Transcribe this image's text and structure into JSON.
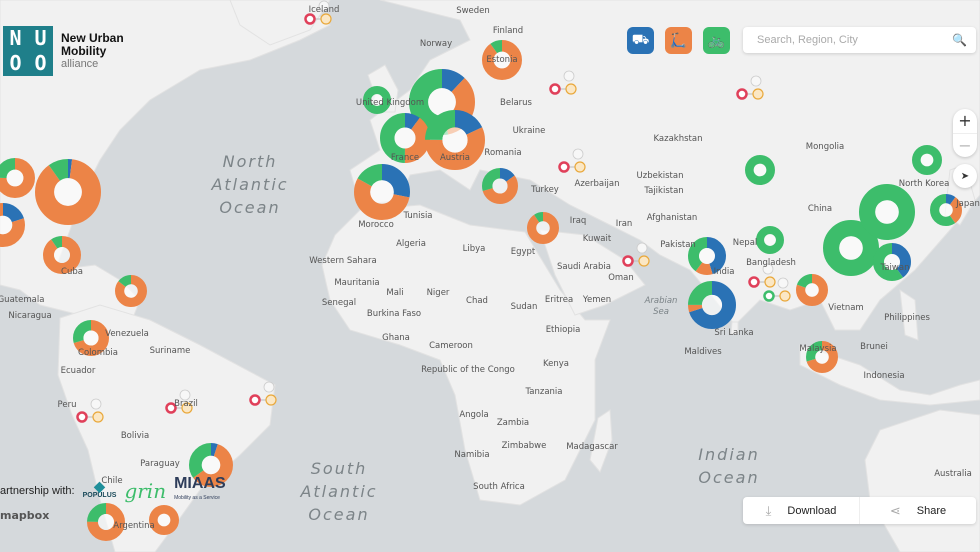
{
  "brand": {
    "logo_letters": [
      "N",
      "U",
      "M",
      "O"
    ],
    "name_line1": "New Urban",
    "name_line2": "Mobility",
    "name_line3": "alliance"
  },
  "modes": [
    {
      "name": "multimodal",
      "icon": "bus-bike-icon",
      "color": "#2a72b5"
    },
    {
      "name": "scooter",
      "icon": "scooter-icon",
      "color": "#ec8447"
    },
    {
      "name": "bike",
      "icon": "bicycle-icon",
      "color": "#3dbd6b"
    }
  ],
  "search": {
    "placeholder": "Search, Region, City",
    "value": ""
  },
  "zoom": {
    "in": "+",
    "out": "−"
  },
  "actions": {
    "download": "Download",
    "share": "Share"
  },
  "partnership": {
    "label": "artnership with:",
    "partners": [
      "POPULUS",
      "grin",
      "MIAAS"
    ],
    "miaas_tagline": "Mobility as a Service"
  },
  "attribution": "mapbox",
  "colors": {
    "green": "#3dbd6b",
    "orange": "#ec8447",
    "blue": "#2a72b5",
    "red": "#e0405a",
    "land": "#f1f1f1",
    "water": "#d5d9dc"
  },
  "oceans": [
    [
      "North",
      "Atlantic",
      "Ocean"
    ],
    [
      "South",
      "Atlantic",
      "Ocean"
    ],
    [
      "Indian",
      "Ocean"
    ]
  ],
  "seas": [
    [
      "Arabian",
      "Sea"
    ]
  ],
  "labels": [
    "Iceland",
    "Sweden",
    "Finland",
    "Norway",
    "United Kingdom",
    "Belarus",
    "Ukraine",
    "Kazakhstan",
    "Mongolia",
    "Romania",
    "Uzbekistan",
    "Tajikistan",
    "North Korea",
    "Japan",
    "China",
    "Turkey",
    "Azerbaijan",
    "Tunisia",
    "Iraq",
    "Iran",
    "Afghanistan",
    "Kuwait",
    "Nepal",
    "Morocco",
    "Algeria",
    "Libya",
    "Egypt",
    "Pakistan",
    "Saudi Arabia",
    "Oman",
    "India",
    "Bangladesh",
    "Western Sahara",
    "Mauritania",
    "Mali",
    "Niger",
    "Chad",
    "Sudan",
    "Eritrea",
    "Yemen",
    "Vietnam",
    "Philippines",
    "Senegal",
    "Burkina Faso",
    "Ethiopia",
    "Sri Lanka",
    "Ghana",
    "Cameroon",
    "Maldives",
    "Brunei",
    "Republic of the Congo",
    "Kenya",
    "Malaysia",
    "Indonesia",
    "Tanzania",
    "Angola",
    "Zambia",
    "Zimbabwe",
    "Madagascar",
    "Namibia",
    "South Africa",
    "Australia",
    "Venezuela",
    "Suriname",
    "Colombia",
    "Ecuador",
    "Peru",
    "Brazil",
    "Bolivia",
    "Paraguay",
    "Chile",
    "Argentina",
    "Cuba",
    "Guatemala",
    "Nicaragua",
    "France",
    "Austria",
    "Estonia",
    "Taiwan"
  ],
  "donuts": [
    {
      "green": 0.25,
      "orange": 0.75,
      "blue": 0
    },
    {
      "green": 0.1,
      "orange": 0.88,
      "blue": 0.02
    },
    {
      "green": 0,
      "orange": 0.8,
      "blue": 0.2
    },
    {
      "green": 0.1,
      "orange": 0.9,
      "blue": 0
    },
    {
      "green": 0.15,
      "orange": 0.85,
      "blue": 0
    },
    {
      "green": 0.3,
      "orange": 0.7,
      "blue": 0
    },
    {
      "green": 0.35,
      "orange": 0.6,
      "blue": 0.05
    },
    {
      "green": 0.25,
      "orange": 0.75,
      "blue": 0
    },
    {
      "green": 0,
      "orange": 1,
      "blue": 0
    },
    {
      "green": 0.1,
      "orange": 0.9,
      "blue": 0
    },
    {
      "green": 1,
      "orange": 0,
      "blue": 0
    },
    {
      "green": 0.53,
      "orange": 0.35,
      "blue": 0.12
    },
    {
      "green": 0.5,
      "orange": 0.4,
      "blue": 0.1
    },
    {
      "green": 0.25,
      "orange": 0.57,
      "blue": 0.18
    },
    {
      "green": 0.17,
      "orange": 0.55,
      "blue": 0.28
    },
    {
      "green": 0.3,
      "orange": 0.55,
      "blue": 0.15
    },
    {
      "green": 0.1,
      "orange": 0.9,
      "blue": 0
    },
    {
      "green": 0.4,
      "orange": 0.15,
      "blue": 0.45
    },
    {
      "green": 0.25,
      "orange": 0.05,
      "blue": 0.7
    },
    {
      "green": 1,
      "orange": 0,
      "blue": 0
    },
    {
      "green": 1,
      "orange": 0,
      "blue": 0
    },
    {
      "green": 0.2,
      "orange": 0.8,
      "blue": 0
    },
    {
      "green": 1,
      "orange": 0,
      "blue": 0
    },
    {
      "green": 1,
      "orange": 0,
      "blue": 0
    },
    {
      "green": 0.6,
      "orange": 0,
      "blue": 0.4
    },
    {
      "green": 1,
      "orange": 0,
      "blue": 0
    },
    {
      "green": 0.6,
      "orange": 0.3,
      "blue": 0.1
    },
    {
      "green": 0.3,
      "orange": 0.7,
      "blue": 0
    }
  ],
  "markers_count": 10
}
